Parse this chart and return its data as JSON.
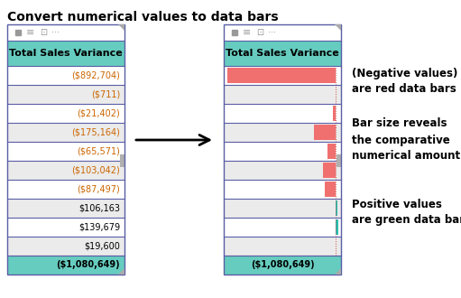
{
  "title": "Convert numerical values to data bars",
  "title_fontsize": 10,
  "title_fontweight": "bold",
  "bg_color": "#ffffff",
  "table_border_color": "#5b5ea6",
  "header_bg": "#66ccbf",
  "header_text": "Total Sales Variance",
  "total_row_bg": "#66ccbf",
  "values": [
    "($892,704)",
    "($711)",
    "($21,402)",
    "($175,164)",
    "($65,571)",
    "($103,042)",
    "($87,497)",
    "$106,163",
    "$139,679",
    "$19,600",
    "($1,080,649)"
  ],
  "numeric_values": [
    -892704,
    -711,
    -21402,
    -175164,
    -65571,
    -103042,
    -87497,
    106163,
    139679,
    19600,
    -1080649
  ],
  "bar_max": 892704,
  "red_bar_color": "#f07070",
  "green_bar_color": "#2abfb0",
  "note1_text": "(Negative values)\nare red data bars",
  "note2_text": "Bar size reveals\nthe comparative\nnumerical amount",
  "note3_text": "Positive values\nare green data bars",
  "note_fontsize": 8.5,
  "note_fontweight": "bold",
  "total_label": "($1,080,649)",
  "scrollbar_color": "#b0b0b0",
  "icon_color": "#999999",
  "dotted_line_color": "#cc4444",
  "neg_text_color": "#cc6600",
  "pos_text_color": "#000000",
  "row_bg_a": "#ffffff",
  "row_bg_b": "#ebebeb",
  "toolbar_bg": "#ffffff",
  "border_lw": 0.8,
  "outer_lw": 1.0
}
